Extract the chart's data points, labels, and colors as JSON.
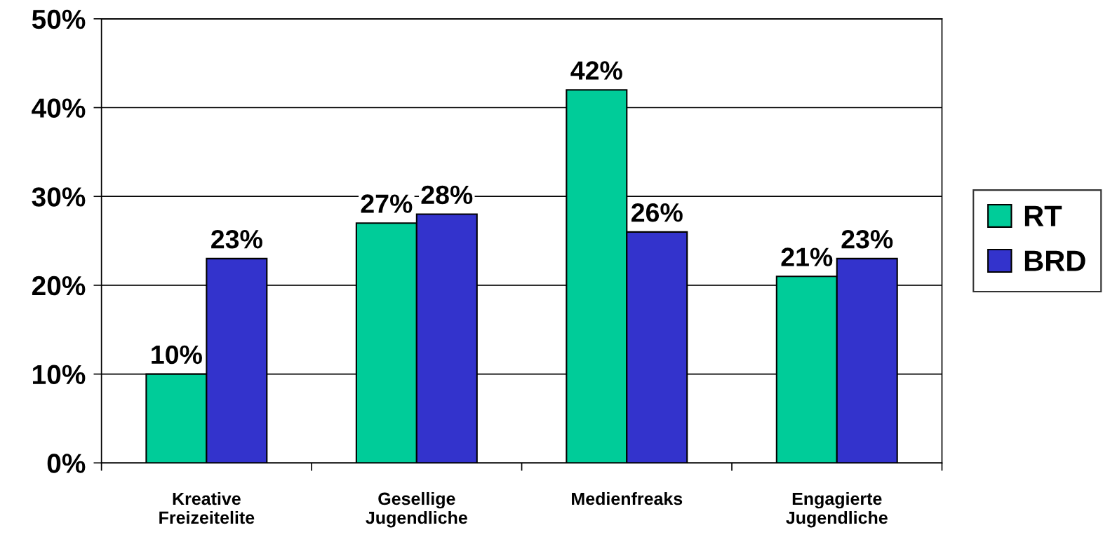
{
  "chart_data": {
    "type": "bar",
    "categories": [
      "Kreative\nFreizeitelite",
      "Gesellige\nJugendliche",
      "Medienfreaks",
      "Engagierte\nJugendliche"
    ],
    "series": [
      {
        "name": "RT",
        "color": "#00cc99",
        "values": [
          10,
          27,
          42,
          21
        ],
        "value_labels": [
          "10%",
          "27%",
          "42%",
          "21%"
        ]
      },
      {
        "name": "BRD",
        "color": "#3333cc",
        "values": [
          23,
          28,
          26,
          23
        ],
        "value_labels": [
          "23%",
          "28%",
          "26%",
          "23%"
        ]
      }
    ],
    "ylim": [
      0,
      50
    ],
    "yticks": [
      {
        "value": 0,
        "label": "0%"
      },
      {
        "value": 10,
        "label": "10%"
      },
      {
        "value": 20,
        "label": "20%"
      },
      {
        "value": 30,
        "label": "30%"
      },
      {
        "value": 40,
        "label": "40%"
      },
      {
        "value": 50,
        "label": "50%"
      }
    ],
    "grid": "y",
    "legend": "right"
  }
}
